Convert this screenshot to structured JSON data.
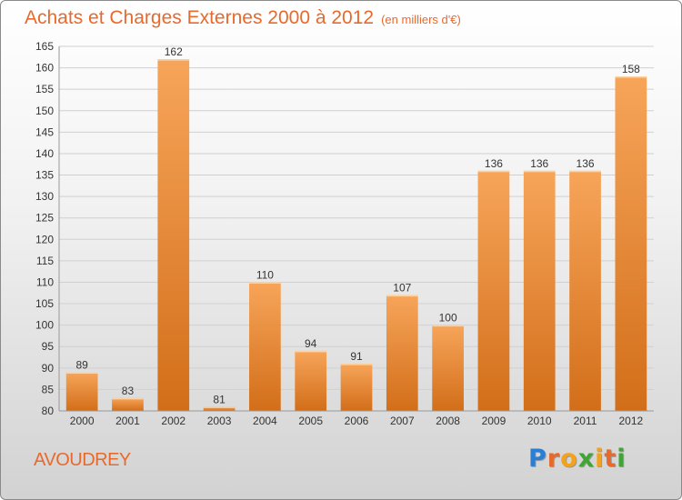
{
  "header": {
    "title": "Achats et Charges Externes 2000 à 2012",
    "unit": "(en milliers d'€)"
  },
  "place": "AVOUDREY",
  "logo": {
    "text": "Proxiti",
    "letters": [
      {
        "ch": "P",
        "color": "#2a7fd4"
      },
      {
        "ch": "r",
        "color": "#e8692c"
      },
      {
        "ch": "o",
        "color": "#f3a21c"
      },
      {
        "ch": "x",
        "color": "#3fa535"
      },
      {
        "ch": "i",
        "color": "#f3a21c"
      },
      {
        "ch": "t",
        "color": "#e8692c"
      },
      {
        "ch": "i",
        "color": "#3fa535"
      }
    ]
  },
  "colors": {
    "bar_top": "#f7a55a",
    "bar_bottom": "#d26e19",
    "accent": "#e8692c"
  },
  "chart_data": {
    "type": "bar",
    "title": "Achats et Charges Externes 2000 à 2012",
    "subtitle": "(en milliers d'€)",
    "categories": [
      "2000",
      "2001",
      "2002",
      "2003",
      "2004",
      "2005",
      "2006",
      "2007",
      "2008",
      "2009",
      "2010",
      "2011",
      "2012"
    ],
    "values": [
      89,
      83,
      162,
      81,
      110,
      94,
      91,
      107,
      100,
      136,
      136,
      136,
      158
    ],
    "ylim": [
      80,
      165
    ],
    "yticks": [
      80,
      85,
      90,
      95,
      100,
      105,
      110,
      115,
      120,
      125,
      130,
      135,
      140,
      145,
      150,
      155,
      160,
      165
    ],
    "grid": true,
    "legend": "none"
  }
}
